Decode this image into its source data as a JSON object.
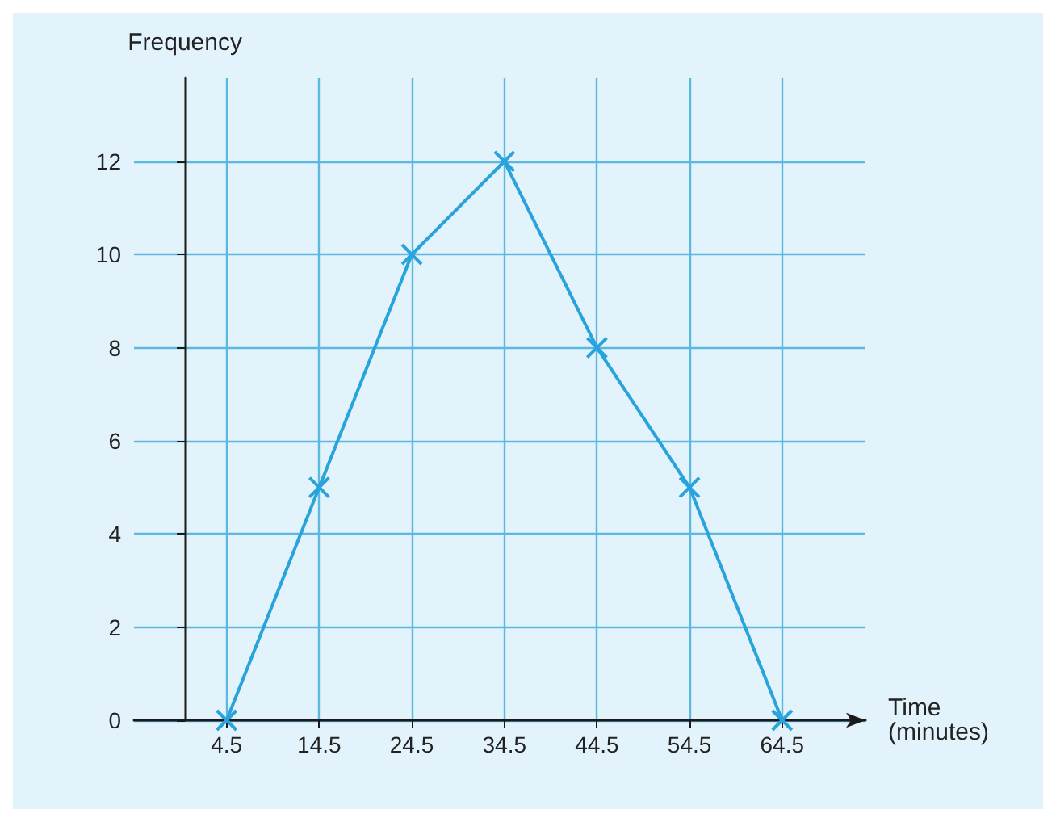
{
  "chart_data": {
    "type": "line",
    "xlabel": "Time\n(minutes)",
    "ylabel": "Frequency",
    "x": [
      4.5,
      14.5,
      24.5,
      34.5,
      44.5,
      54.5,
      64.5
    ],
    "series": [
      {
        "color": "#29a3dc",
        "values": [
          0,
          5,
          10,
          12,
          8,
          5,
          0
        ]
      }
    ],
    "xlim": [
      -5.5,
      73.5
    ],
    "xticks": [
      4.5,
      14.5,
      24.5,
      34.5,
      44.5,
      54.5,
      64.5
    ],
    "ylim": [
      0,
      13.8
    ],
    "yticks": [
      0,
      2,
      4,
      6,
      8,
      10,
      12
    ],
    "grid": true,
    "marker": "cross",
    "line_style": "solid"
  }
}
